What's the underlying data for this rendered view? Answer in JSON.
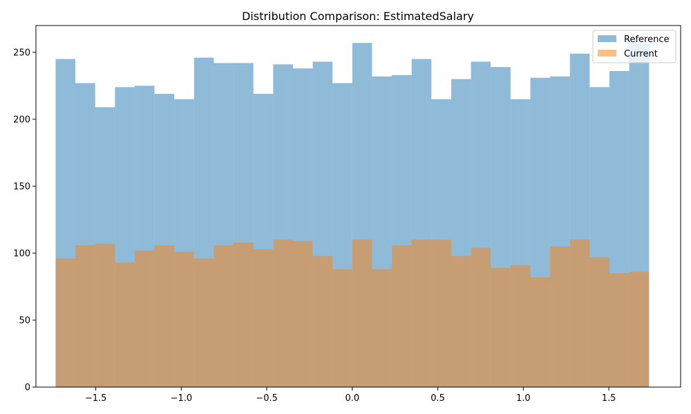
{
  "chart_data": {
    "type": "bar",
    "title": "Distribution Comparison: EstimatedSalary",
    "xlabel": "",
    "ylabel": "",
    "xlim": [
      -1.85,
      1.92
    ],
    "ylim": [
      0,
      270
    ],
    "bins": {
      "start": -1.735,
      "width": 0.11567
    },
    "x_ticks": [
      -1.5,
      -1.0,
      -0.5,
      0.0,
      0.5,
      1.0,
      1.5
    ],
    "x_tick_labels": [
      "−1.5",
      "−1.0",
      "−0.5",
      "0.0",
      "0.5",
      "1.0",
      "1.5"
    ],
    "y_ticks": [
      0,
      50,
      100,
      150,
      200,
      250
    ],
    "y_tick_labels": [
      "0",
      "50",
      "100",
      "150",
      "200",
      "250"
    ],
    "legend_position": "top-right",
    "grid": false,
    "series": [
      {
        "name": "Reference",
        "color": "#1f77b4",
        "opacity": 0.5,
        "values": [
          245,
          227,
          209,
          224,
          225,
          219,
          215,
          246,
          242,
          242,
          219,
          241,
          238,
          243,
          227,
          257,
          232,
          233,
          245,
          215,
          230,
          243,
          239,
          215,
          231,
          232,
          249,
          224,
          236,
          257
        ]
      },
      {
        "name": "Current",
        "color": "#ff7f0e",
        "opacity": 0.5,
        "values": [
          96,
          106,
          107,
          93,
          102,
          106,
          101,
          96,
          106,
          108,
          103,
          110,
          109,
          98,
          88,
          110,
          88,
          106,
          110,
          110,
          98,
          104,
          89,
          91,
          82,
          105,
          110,
          97,
          85,
          86
        ]
      }
    ]
  }
}
